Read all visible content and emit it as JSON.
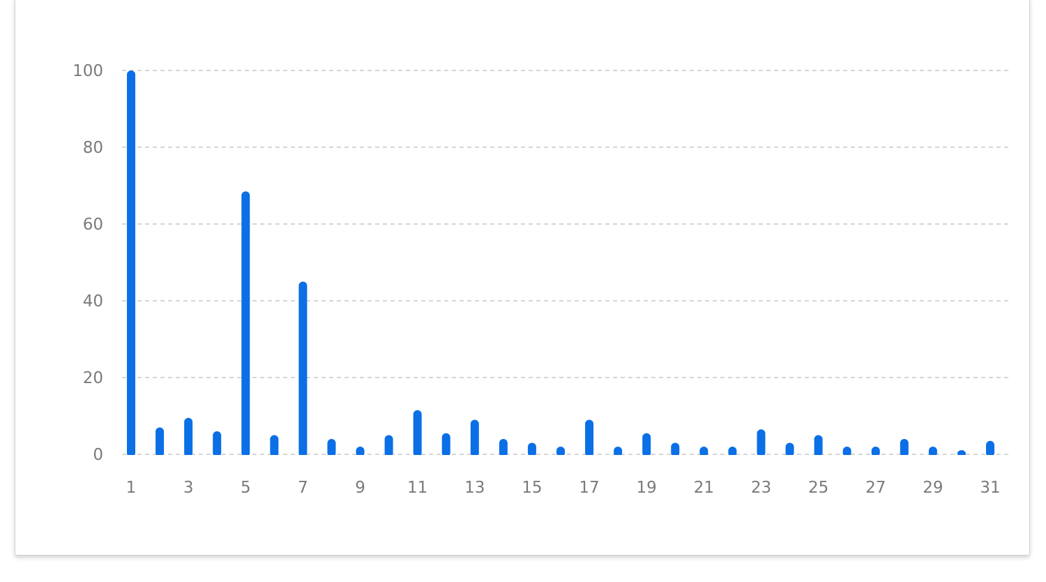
{
  "chart_data": {
    "type": "bar",
    "categories": [
      "1",
      "2",
      "3",
      "4",
      "5",
      "6",
      "7",
      "8",
      "9",
      "10",
      "11",
      "12",
      "13",
      "14",
      "15",
      "16",
      "17",
      "18",
      "19",
      "20",
      "21",
      "22",
      "23",
      "24",
      "25",
      "26",
      "27",
      "28",
      "29",
      "30",
      "31"
    ],
    "values": [
      100,
      7,
      9.5,
      6,
      68.5,
      5,
      45,
      4,
      2,
      5,
      11.5,
      5.5,
      9,
      4,
      3,
      2,
      9,
      2,
      5.5,
      3,
      2,
      2,
      6.5,
      3,
      5,
      2,
      2,
      4,
      2,
      1,
      3.5
    ],
    "x_tick_labels": [
      "1",
      "3",
      "5",
      "7",
      "9",
      "11",
      "13",
      "15",
      "17",
      "19",
      "21",
      "23",
      "25",
      "27",
      "29",
      "31"
    ],
    "y_tick_labels": [
      "0",
      "20",
      "40",
      "60",
      "80",
      "100"
    ],
    "ylim": [
      0,
      100
    ],
    "grid": true,
    "title": "",
    "xlabel": "",
    "ylabel": "",
    "bar_color": "#0b6fe6",
    "grid_color": "#c8c8c8",
    "tick_color": "#7a7a7a"
  }
}
